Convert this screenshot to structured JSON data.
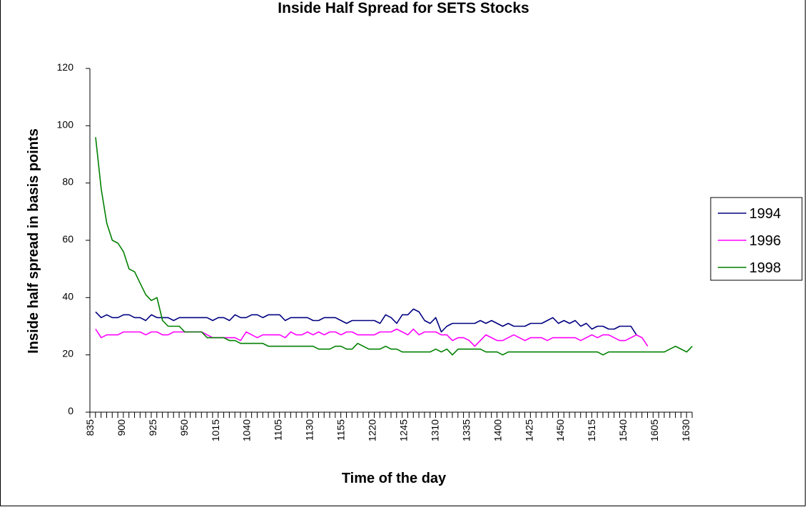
{
  "chart_data": {
    "type": "line",
    "title": "Inside Half Spread for SETS Stocks",
    "xlabel": "Time of the day",
    "ylabel": "Inside half spread in basis points",
    "ylim": [
      0,
      120
    ],
    "yticks": [
      0,
      20,
      40,
      60,
      80,
      100,
      120
    ],
    "x_tick_labels": [
      "835",
      "900",
      "925",
      "950",
      "1015",
      "1040",
      "1105",
      "1130",
      "1155",
      "1220",
      "1245",
      "1310",
      "1335",
      "1400",
      "1425",
      "1450",
      "1515",
      "1540",
      "1605",
      "1630"
    ],
    "legend_position": "right",
    "grid": false,
    "series": [
      {
        "name": "1994",
        "color": "#000080",
        "values": [
          35,
          33,
          34,
          33,
          33,
          34,
          34,
          33,
          33,
          32,
          34,
          33,
          33,
          33,
          32,
          33,
          33,
          33,
          33,
          33,
          33,
          32,
          33,
          33,
          32,
          34,
          33,
          33,
          34,
          34,
          33,
          34,
          34,
          34,
          32,
          33,
          33,
          33,
          33,
          32,
          32,
          33,
          33,
          33,
          32,
          31,
          32,
          32,
          32,
          32,
          32,
          31,
          34,
          33,
          31,
          34,
          34,
          36,
          35,
          32,
          31,
          33,
          28,
          30,
          31,
          31,
          31,
          31,
          31,
          32,
          31,
          32,
          31,
          30,
          31,
          30,
          30,
          30,
          31,
          31,
          31,
          32,
          33,
          31,
          32,
          31,
          32,
          30,
          31,
          29,
          30,
          30,
          29,
          29,
          30,
          30,
          30,
          27
        ]
      },
      {
        "name": "1996",
        "color": "#FF00FF",
        "values": [
          29,
          26,
          27,
          27,
          27,
          28,
          28,
          28,
          28,
          27,
          28,
          28,
          27,
          27,
          28,
          28,
          28,
          28,
          28,
          28,
          27,
          26,
          26,
          26,
          26,
          26,
          25,
          28,
          27,
          26,
          27,
          27,
          27,
          27,
          26,
          28,
          27,
          27,
          28,
          27,
          28,
          27,
          28,
          28,
          27,
          28,
          28,
          27,
          27,
          27,
          27,
          28,
          28,
          28,
          29,
          28,
          27,
          29,
          27,
          28,
          28,
          28,
          27,
          27,
          25,
          26,
          26,
          25,
          23,
          25,
          27,
          26,
          25,
          25,
          26,
          27,
          26,
          25,
          26,
          26,
          26,
          25,
          26,
          26,
          26,
          26,
          26,
          25,
          26,
          27,
          26,
          27,
          27,
          26,
          25,
          25,
          26,
          27,
          26,
          23
        ]
      },
      {
        "name": "1998",
        "color": "#008000",
        "values": [
          96,
          78,
          66,
          60,
          59,
          56,
          50,
          49,
          45,
          41,
          39,
          40,
          32,
          30,
          30,
          30,
          28,
          28,
          28,
          28,
          26,
          26,
          26,
          26,
          25,
          25,
          24,
          24,
          24,
          24,
          24,
          23,
          23,
          23,
          23,
          23,
          23,
          23,
          23,
          23,
          22,
          22,
          22,
          23,
          23,
          22,
          22,
          24,
          23,
          22,
          22,
          22,
          23,
          22,
          22,
          21,
          21,
          21,
          21,
          21,
          21,
          22,
          21,
          22,
          20,
          22,
          22,
          22,
          22,
          22,
          21,
          21,
          21,
          20,
          21,
          21,
          21,
          21,
          21,
          21,
          21,
          21,
          21,
          21,
          21,
          21,
          21,
          21,
          21,
          21,
          21,
          20,
          21,
          21,
          21,
          21,
          21,
          21,
          21,
          21,
          21,
          21,
          21,
          22,
          23,
          22,
          21,
          23
        ]
      }
    ]
  }
}
